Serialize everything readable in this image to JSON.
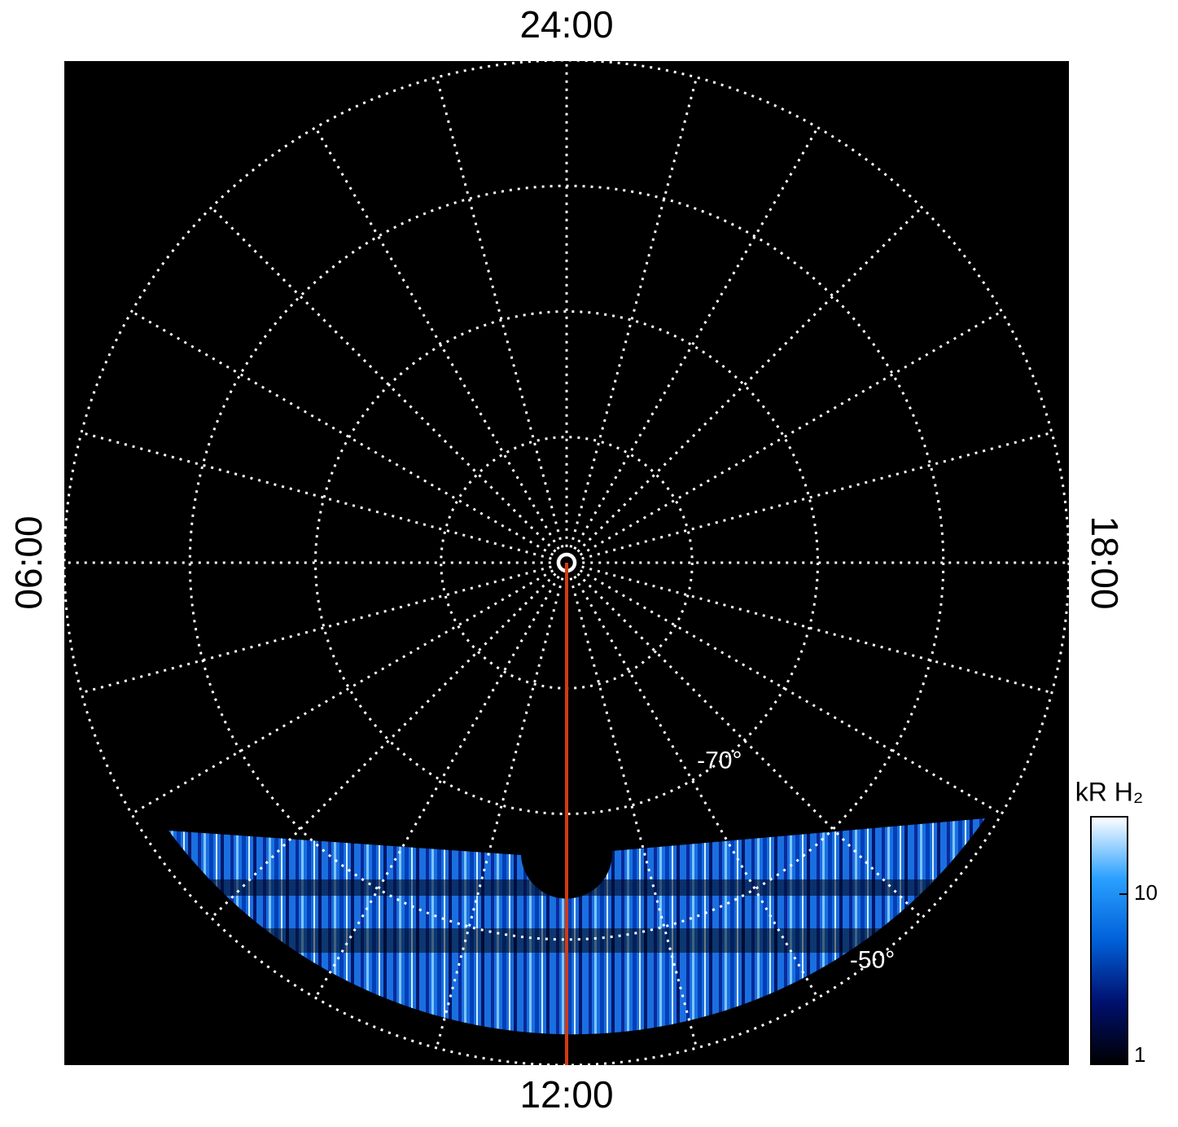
{
  "chart_data": {
    "type": "polar",
    "local_times": [
      {
        "value": 24,
        "label": "24:00"
      },
      {
        "value": 6,
        "label": "06:00"
      },
      {
        "value": 12,
        "label": "12:00"
      },
      {
        "value": 18,
        "label": "18:00"
      }
    ],
    "hour_grid": [
      0,
      1,
      2,
      3,
      4,
      5,
      6,
      7,
      8,
      9,
      10,
      11,
      12,
      13,
      14,
      15,
      16,
      17,
      18,
      19,
      20,
      21,
      22,
      23
    ],
    "rlim": [
      -90,
      -50
    ],
    "latitude_grid": [
      -89.4,
      -80,
      -70,
      -60,
      -50
    ],
    "latitude_labels": [
      {
        "value": -70,
        "label": "-70°"
      },
      {
        "value": -50,
        "label": "-50°"
      }
    ],
    "meridian": 12,
    "meridian_color": "#d33a12",
    "grid_color": "#ffffff",
    "colorbar": {
      "label": "kR H₂",
      "log": true,
      "lim": [
        1,
        28.5
      ],
      "ticks": [
        1,
        10
      ],
      "colors": [
        "#000000",
        "#00106e",
        "#0060d8",
        "#2aa0ff",
        "#ffffff"
      ]
    }
  }
}
